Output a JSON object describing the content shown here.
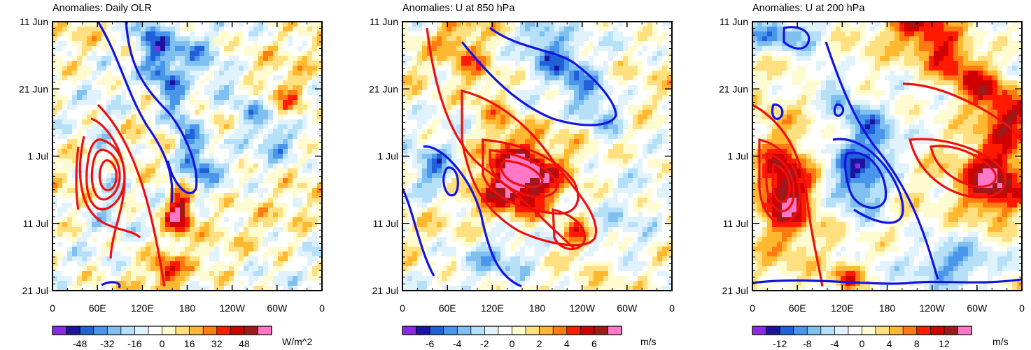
{
  "chart_data": [
    {
      "type": "heatmap",
      "title": "Anomalies: Daily OLR",
      "xlabel": "",
      "ylabel": "",
      "x_ticks": [
        "0",
        "60E",
        "120E",
        "180",
        "120W",
        "60W",
        "0"
      ],
      "y_ticks": [
        "11 Jun",
        "21 Jun",
        "1 Jul",
        "11 Jul",
        "21 Jul"
      ],
      "colorbar": {
        "labels": [
          "-48",
          "-32",
          "-16",
          "0",
          "16",
          "32",
          "48"
        ],
        "units": "W/m^2",
        "range": [
          -56,
          56
        ]
      },
      "features": [
        {
          "name": "red contour center",
          "lon_deg": 90,
          "day": 22,
          "levels": 6
        },
        {
          "name": "positive anomaly",
          "lon_deg": 180,
          "day": 26,
          "value": 40
        },
        {
          "name": "negative band",
          "lon_deg": 140,
          "day": 12,
          "value": -28
        }
      ]
    },
    {
      "type": "heatmap",
      "title": "Anomalies: U at 850 hPa",
      "xlabel": "",
      "ylabel": "",
      "x_ticks": [
        "0",
        "60E",
        "120E",
        "180",
        "120W",
        "60W",
        "0"
      ],
      "y_ticks": [
        "11 Jun",
        "21 Jun",
        "1 Jul",
        "11 Jul",
        "21 Jul"
      ],
      "colorbar": {
        "labels": [
          "-6",
          "-4",
          "-2",
          "0",
          "2",
          "4",
          "6"
        ],
        "units": "m/s",
        "range": [
          -7,
          7
        ]
      },
      "features": [
        {
          "name": "westerly maximum",
          "lon_deg": 160,
          "day": 23,
          "value": 5.5
        },
        {
          "name": "easterly minimum",
          "lon_deg": 40,
          "day": 22,
          "value": -4
        },
        {
          "name": "easterly band",
          "lon_deg": 220,
          "day": 8,
          "value": -3.5
        }
      ]
    },
    {
      "type": "heatmap",
      "title": "Anomalies: U at 200 hPa",
      "xlabel": "",
      "ylabel": "",
      "x_ticks": [
        "0",
        "60E",
        "120E",
        "180",
        "120W",
        "60W",
        "0"
      ],
      "y_ticks": [
        "11 Jun",
        "21 Jun",
        "1 Jul",
        "11 Jul",
        "21 Jul"
      ],
      "colorbar": {
        "labels": [
          "-12",
          "-8",
          "-4",
          "0",
          "4",
          "8",
          "12"
        ],
        "units": "m/s",
        "range": [
          -14,
          14
        ]
      },
      "features": [
        {
          "name": "westerly maximum west",
          "lon_deg": 50,
          "day": 24,
          "value": 12
        },
        {
          "name": "westerly maximum east",
          "lon_deg": 330,
          "day": 22,
          "value": 11
        },
        {
          "name": "easterly minimum",
          "lon_deg": 150,
          "day": 22,
          "value": -9
        }
      ]
    }
  ]
}
